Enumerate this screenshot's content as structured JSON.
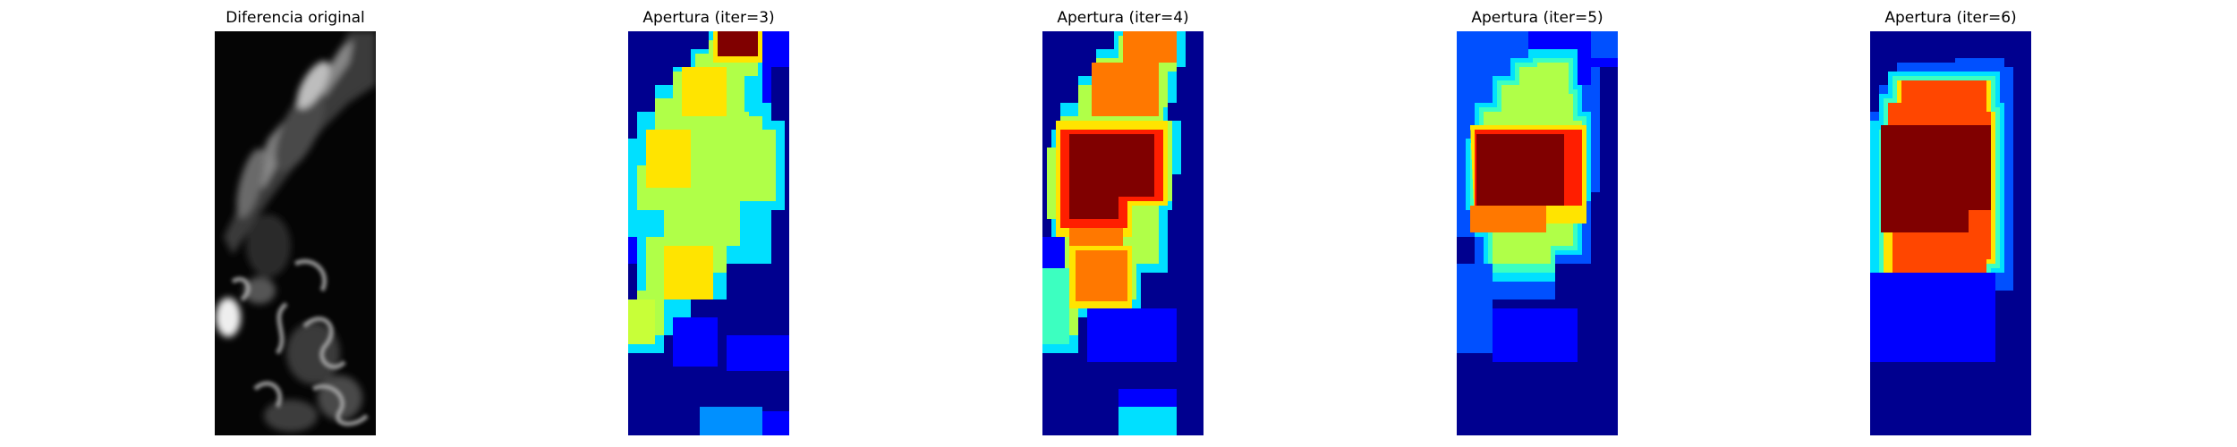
{
  "figure": {
    "panels": [
      {
        "title": "Diferencia original",
        "colormap": "gray"
      },
      {
        "title": "Apertura (iter=3)",
        "colormap": "jet"
      },
      {
        "title": "Apertura (iter=4)",
        "colormap": "jet"
      },
      {
        "title": "Apertura (iter=5)",
        "colormap": "jet"
      },
      {
        "title": "Apertura (iter=6)",
        "colormap": "jet"
      }
    ]
  },
  "colors": {
    "jet_dark_blue": "#00008f",
    "jet_blue": "#0000ff",
    "jet_mid_blue": "#0050ff",
    "jet_light_blue": "#0090ff",
    "jet_cyan": "#00e0ff",
    "jet_aqua": "#3cffc0",
    "jet_green": "#5cffa0",
    "jet_yellow_green": "#b0ff48",
    "jet_lime": "#c8ff38",
    "jet_yellow": "#ffe400",
    "jet_orange": "#ff7800",
    "jet_red_orange": "#ff4600",
    "jet_red": "#ff1e00",
    "jet_dark_red": "#800000"
  }
}
